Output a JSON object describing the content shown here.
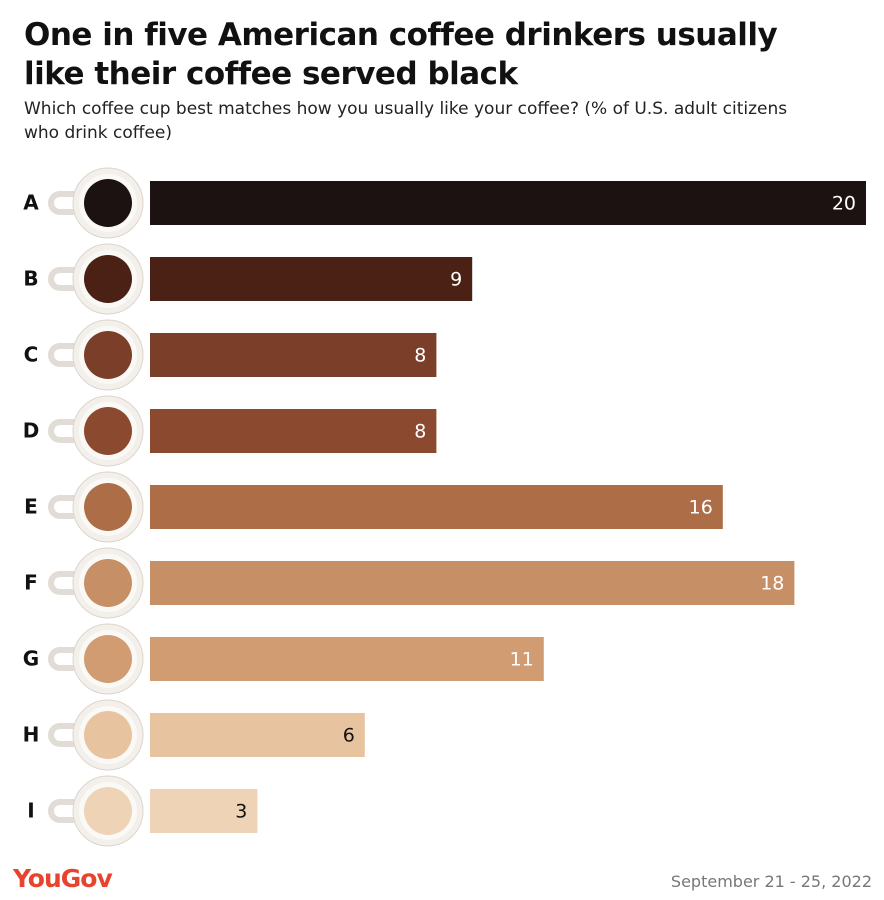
{
  "chart_data": {
    "type": "bar",
    "title": "One in five American coffee drinkers usually like their coffee served black",
    "subtitle": "Which coffee cup best matches how you usually like your coffee? (% of U.S. adult citizens who drink coffee)",
    "categories": [
      "A",
      "B",
      "C",
      "D",
      "E",
      "F",
      "G",
      "H",
      "I"
    ],
    "values": [
      20,
      9,
      8,
      8,
      16,
      18,
      11,
      6,
      3
    ],
    "colors": [
      "#1c1211",
      "#4a2114",
      "#7b3f29",
      "#8b4a30",
      "#ad6d46",
      "#c78f66",
      "#d19c72",
      "#e8c39f",
      "#eed3b6"
    ],
    "source": "YouGov",
    "date": "September 21 - 25, 2022"
  }
}
